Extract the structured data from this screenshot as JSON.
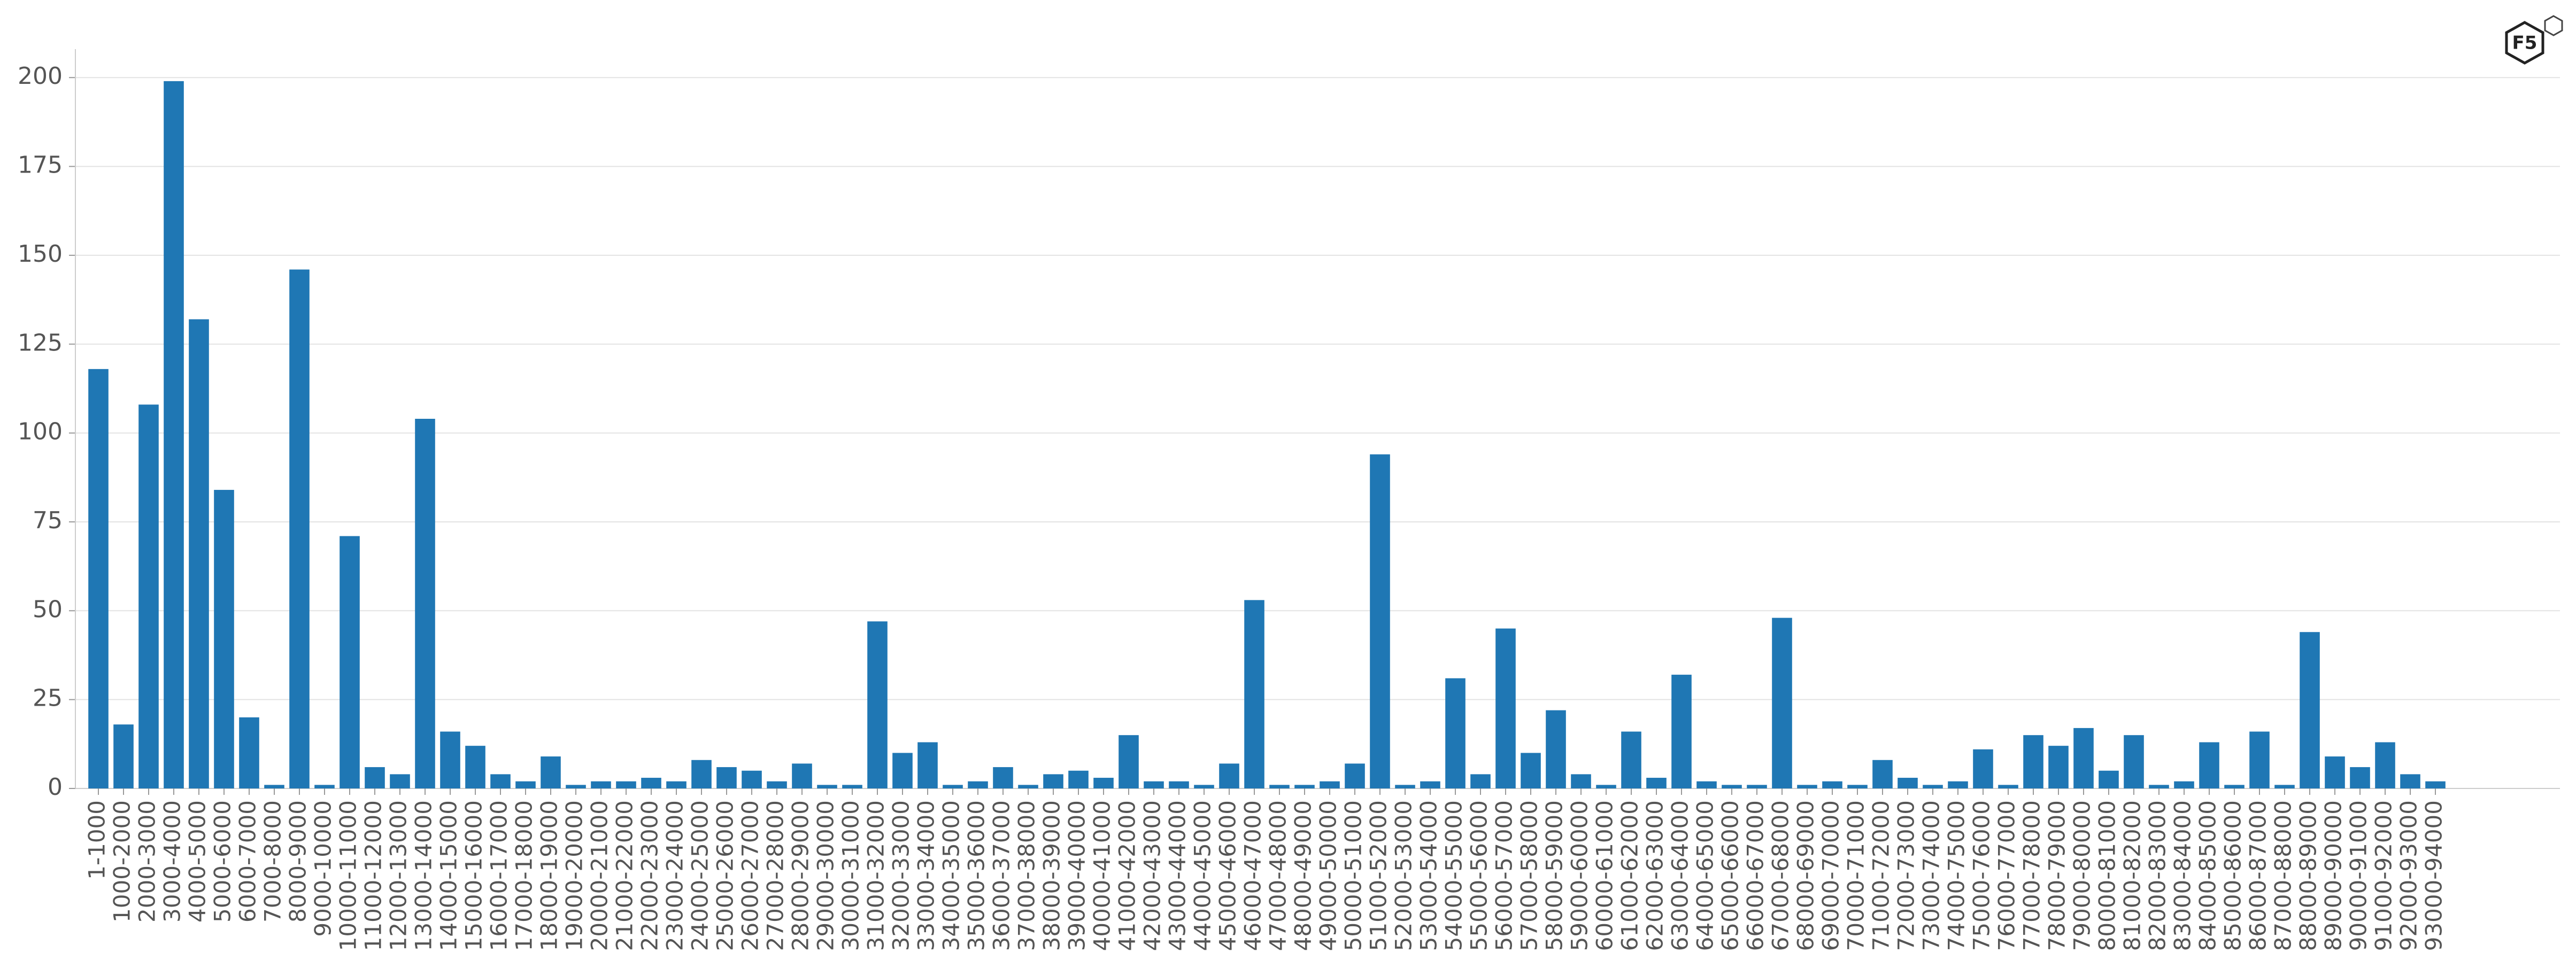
{
  "chart_data": {
    "type": "bar",
    "categories": [
      "1-1000",
      "1000-2000",
      "2000-3000",
      "3000-4000",
      "4000-5000",
      "5000-6000",
      "6000-7000",
      "7000-8000",
      "8000-9000",
      "9000-10000",
      "10000-11000",
      "11000-12000",
      "12000-13000",
      "13000-14000",
      "14000-15000",
      "15000-16000",
      "16000-17000",
      "17000-18000",
      "18000-19000",
      "19000-20000",
      "20000-21000",
      "21000-22000",
      "22000-23000",
      "23000-24000",
      "24000-25000",
      "25000-26000",
      "26000-27000",
      "27000-28000",
      "28000-29000",
      "29000-30000",
      "30000-31000",
      "31000-32000",
      "32000-33000",
      "33000-34000",
      "34000-35000",
      "35000-36000",
      "36000-37000",
      "37000-38000",
      "38000-39000",
      "39000-40000",
      "40000-41000",
      "41000-42000",
      "42000-43000",
      "43000-44000",
      "44000-45000",
      "45000-46000",
      "46000-47000",
      "47000-48000",
      "48000-49000",
      "49000-50000",
      "50000-51000",
      "51000-52000",
      "52000-53000",
      "53000-54000",
      "54000-55000",
      "55000-56000",
      "56000-57000",
      "57000-58000",
      "58000-59000",
      "59000-60000",
      "60000-61000",
      "61000-62000",
      "62000-63000",
      "63000-64000",
      "64000-65000",
      "65000-66000",
      "66000-67000",
      "67000-68000",
      "68000-69000",
      "69000-70000",
      "70000-71000",
      "71000-72000",
      "72000-73000",
      "73000-74000",
      "74000-75000",
      "75000-76000",
      "76000-77000",
      "77000-78000",
      "78000-79000",
      "79000-80000",
      "80000-81000",
      "81000-82000",
      "82000-83000",
      "83000-84000",
      "84000-85000",
      "85000-86000",
      "86000-87000",
      "87000-88000",
      "88000-89000",
      "89000-90000",
      "90000-91000",
      "91000-92000",
      "92000-93000",
      "93000-94000"
    ],
    "values": [
      118,
      18,
      108,
      199,
      132,
      84,
      20,
      1,
      146,
      1,
      71,
      6,
      4,
      104,
      16,
      12,
      4,
      2,
      9,
      1,
      2,
      2,
      3,
      2,
      8,
      6,
      5,
      2,
      7,
      1,
      1,
      47,
      10,
      13,
      1,
      2,
      6,
      1,
      4,
      5,
      3,
      15,
      2,
      2,
      1,
      7,
      53,
      1,
      1,
      2,
      7,
      94,
      1,
      2,
      31,
      4,
      45,
      10,
      22,
      4,
      1,
      16,
      3,
      32,
      2,
      1,
      1,
      48,
      1,
      2,
      1,
      8,
      3,
      1,
      2,
      11,
      1,
      15,
      12,
      17,
      5,
      15,
      1,
      2,
      13,
      1,
      16,
      1,
      44,
      9,
      6,
      13,
      4,
      2
    ],
    "color": "#1f77b4",
    "ylim": [
      0,
      208
    ],
    "yticks": [
      0,
      25,
      50,
      75,
      100,
      125,
      150,
      175,
      200
    ],
    "grid": true
  },
  "logo": {
    "text": "F5"
  }
}
